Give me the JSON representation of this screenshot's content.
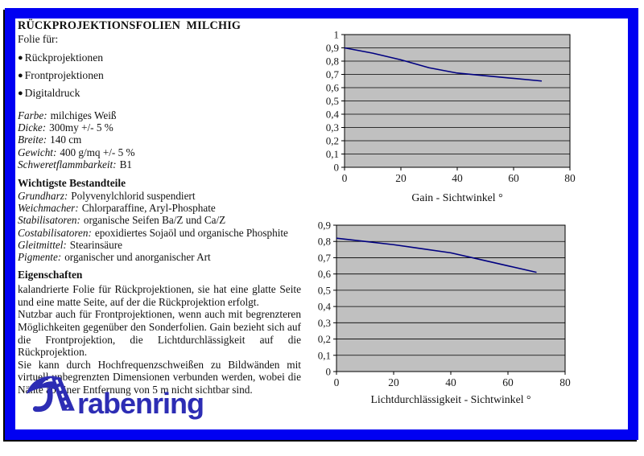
{
  "frame": {
    "border_color": "#0000f2",
    "edge_line_color": "#000000"
  },
  "document": {
    "title": "RÜCKPROJEKTIONSFOLIEN  MILCHIG",
    "subtitle": "Folie für:",
    "bullet_glyph": "●",
    "bullets": [
      "Rückprojektionen",
      "Frontprojektionen",
      "Digitaldruck"
    ],
    "properties": [
      {
        "label": "Farbe:",
        "value": "milchiges Weiß"
      },
      {
        "label": "Dicke:",
        "value": "300my  +/- 5 %"
      },
      {
        "label": "Breite:",
        "value": "140 cm"
      },
      {
        "label": "Gewicht:",
        "value": "400 g/mq +/- 5 %"
      },
      {
        "label": "Schweretflammbarkeit:",
        "value": "B1"
      }
    ],
    "components_heading": "Wichtigste Bestandteile",
    "components": [
      {
        "label": "Grundharz:",
        "value": "Polyvenylchlorid suspendiert"
      },
      {
        "label": "Weichmacher:",
        "value": "Chlorparaffine, Aryl-Phosphate"
      },
      {
        "label": "Stabilisatoren:",
        "value": "organische Seifen Ba/Z und Ca/Z"
      },
      {
        "label": "Costabilisatoren:",
        "value": "epoxidiertes Sojaöl und organische Phosphite"
      },
      {
        "label": "Gleitmittel:",
        "value": "Stearinsäure"
      },
      {
        "label": "Pigmente:",
        "value": "organischer und anorganischer Art"
      }
    ],
    "eigenschaften_heading": "Eigenschaften",
    "paragraphs": [
      "kalandrierte Folie für Rückprojektionen, sie hat eine glatte Seite und eine matte Seite, auf der  die Rückprojektion erfolgt.",
      "Nutzbar auch für Frontprojektionen, wenn auch mit begrenzteren Möglichkeiten gegenüber den Sonderfolien. Gain bezieht sich auf die Frontprojektion, die Lichtdurchlässigkeit auf die Rückprojektion.",
      "Sie kann durch Hochfrequenzschweißen zu Bildwänden mit virtuell unbegrenzten Dimensionen verbunden werden, wobei die Nähte ab einer Entfernung von 5 m nicht sichtbar sind."
    ]
  },
  "logo": {
    "mark": "raven-road-mark",
    "text_regular": "raben",
    "text_bold": "ring",
    "color": "#2d2db4"
  },
  "chart_data": [
    {
      "type": "line",
      "title": "Gain - Sichtwinkel °",
      "xlabel": "Sichtwinkel °",
      "ylabel": "Gain",
      "x": [
        0,
        10,
        20,
        30,
        40,
        50,
        60,
        70
      ],
      "series": [
        {
          "name": "Gain",
          "values": [
            0.9,
            0.86,
            0.81,
            0.75,
            0.71,
            0.69,
            0.67,
            0.65
          ]
        }
      ],
      "xlim": [
        0,
        80
      ],
      "ylim": [
        0,
        1
      ],
      "xticks": [
        "0",
        "20",
        "40",
        "60",
        "80"
      ],
      "yticks": [
        "1",
        "0,9",
        "0,8",
        "0,7",
        "0,6",
        "0,5",
        "0,4",
        "0,3",
        "0,2",
        "0,1",
        "0"
      ],
      "grid": "horizontal",
      "legend": "none",
      "plot_bg": "#c0c0c0",
      "line_color": "#000080"
    },
    {
      "type": "line",
      "title": "Lichtdurchlässigkeit  -  Sichtwinkel  °",
      "xlabel": "Sichtwinkel °",
      "ylabel": "Lichtdurchlässigkeit",
      "x": [
        0,
        10,
        20,
        30,
        40,
        50,
        60,
        70
      ],
      "series": [
        {
          "name": "Lichtdurchlässigkeit",
          "values": [
            0.82,
            0.8,
            0.78,
            0.755,
            0.73,
            0.69,
            0.65,
            0.61
          ]
        }
      ],
      "xlim": [
        0,
        80
      ],
      "ylim": [
        0,
        0.9
      ],
      "xticks": [
        "0",
        "20",
        "40",
        "60",
        "80"
      ],
      "yticks": [
        "0,9",
        "0,8",
        "0,7",
        "0,6",
        "0,5",
        "0,4",
        "0,3",
        "0,2",
        "0,1",
        "0"
      ],
      "grid": "horizontal",
      "legend": "none",
      "plot_bg": "#c0c0c0",
      "line_color": "#000080"
    }
  ]
}
